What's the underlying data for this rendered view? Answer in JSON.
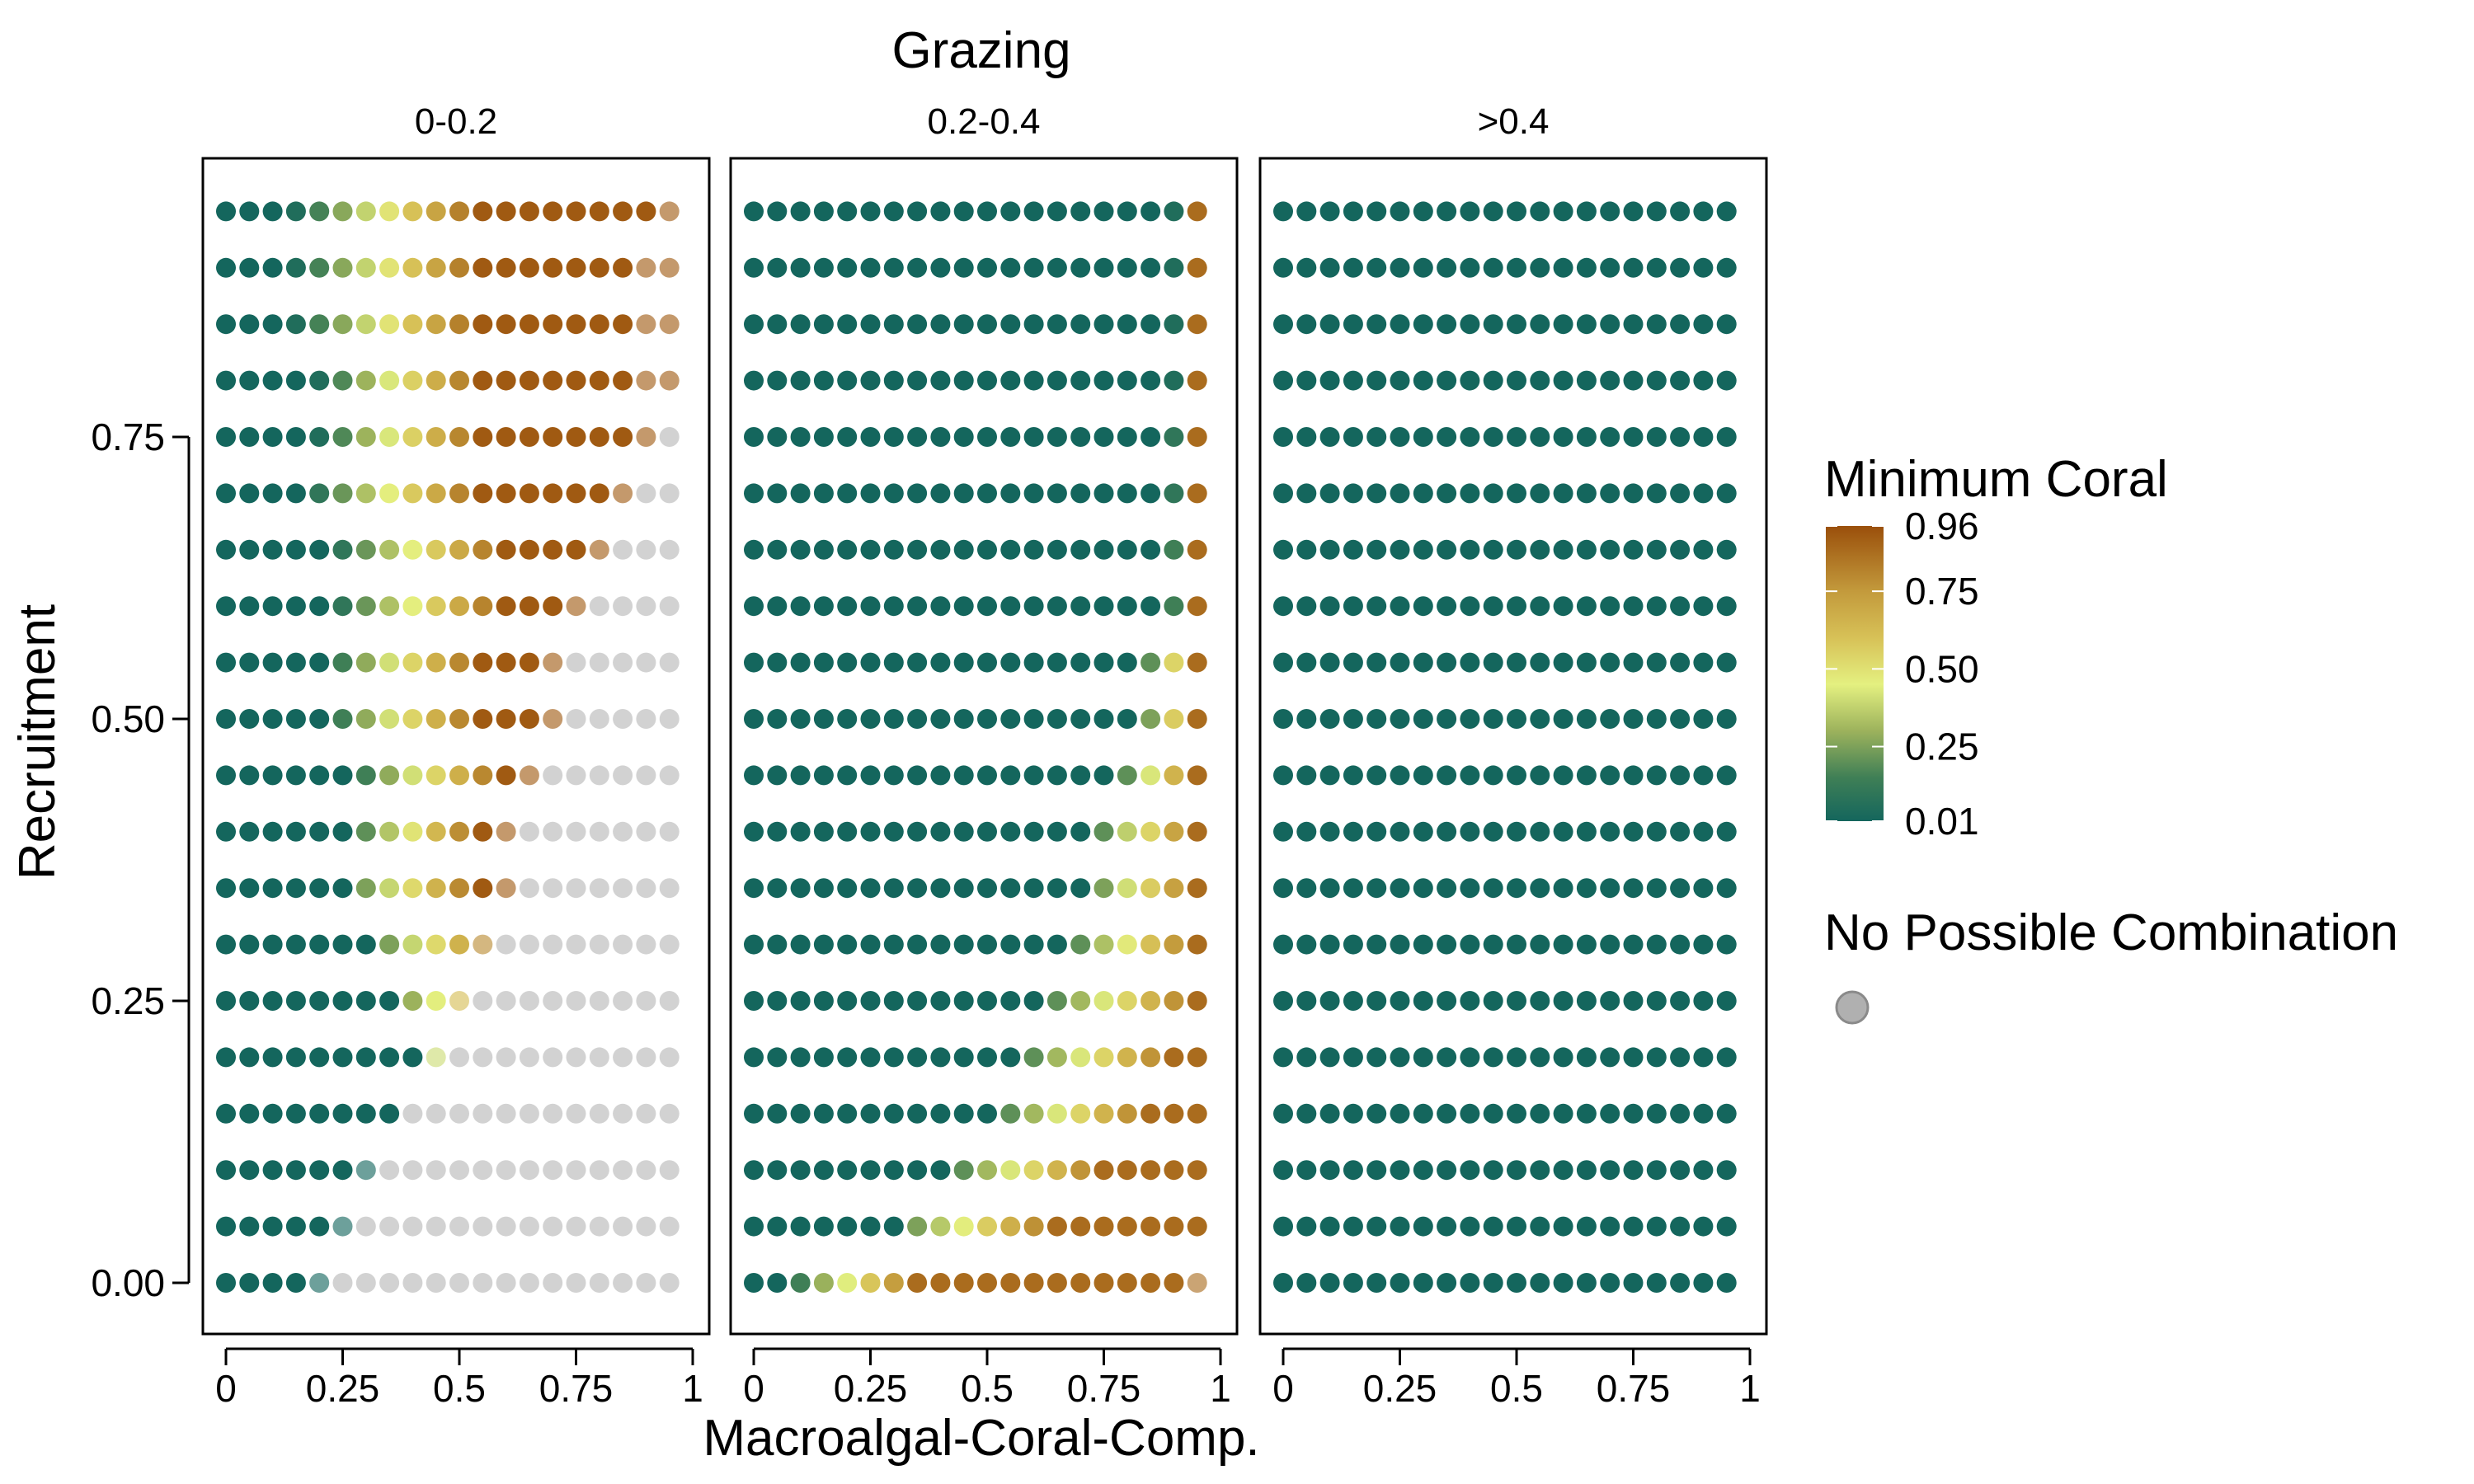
{
  "chart_data": {
    "type": "scatter",
    "title": "Grazing",
    "xlabel": "Macroalgal-Coral-Comp.",
    "ylabel": "Recruitment",
    "xlim": [
      0,
      1
    ],
    "ylim": [
      0,
      0.95
    ],
    "x_ticks": [
      "0",
      "0.25",
      "0.5",
      "0.75",
      "1"
    ],
    "x_tick_values": [
      0,
      0.25,
      0.5,
      0.75,
      1
    ],
    "y_ticks": [
      "0.00",
      "0.25",
      "0.50",
      "0.75"
    ],
    "y_tick_values": [
      0,
      0.25,
      0.5,
      0.75
    ],
    "x_values": [
      0,
      0.05,
      0.1,
      0.15,
      0.2,
      0.25,
      0.3,
      0.35,
      0.4,
      0.45,
      0.5,
      0.55,
      0.6,
      0.65,
      0.7,
      0.75,
      0.8,
      0.85,
      0.9,
      0.95
    ],
    "y_values": [
      0,
      0.05,
      0.1,
      0.15,
      0.2,
      0.25,
      0.3,
      0.35,
      0.4,
      0.45,
      0.5,
      0.55,
      0.6,
      0.65,
      0.7,
      0.75,
      0.8,
      0.85,
      0.9,
      0.95
    ],
    "panels": [
      {
        "label": "0-0.2",
        "start_x": [
          0.95,
          0.65,
          0.5,
          0.5,
          0.45,
          0.4,
          0.35,
          0.3,
          0.3,
          0.3,
          0.25,
          0.25,
          0.25,
          0.25,
          0.2,
          0.2,
          0.2,
          0.15,
          0.15,
          0.15
        ],
        "first_value": [
          0.8,
          0.5,
          0.1,
          0.5,
          0.4,
          0.3,
          0.25,
          0.25,
          0.2,
          0.15,
          0.15,
          0.15,
          0.1,
          0.1,
          0.1,
          0.05,
          0.05,
          0.05,
          0.05,
          0.05
        ],
        "ramp_width": [
          0.05,
          0.1,
          0.15,
          0.2,
          0.2,
          0.2,
          0.25,
          0.25,
          0.25,
          0.3,
          0.3,
          0.3,
          0.35,
          0.35,
          0.35,
          0.35,
          0.35,
          0.4,
          0.4,
          0.4
        ],
        "peak_value": 0.93,
        "fade_dots": [
          1,
          1,
          1,
          0,
          1,
          1,
          1,
          1,
          1,
          1,
          1,
          1,
          1,
          1,
          1,
          1,
          2,
          2,
          2,
          1
        ],
        "na_start_x": [
          0.25,
          0.3,
          0.35,
          0.4,
          0.5,
          0.55,
          0.6,
          0.65,
          0.65,
          0.7,
          0.75,
          0.75,
          0.8,
          0.85,
          0.9,
          0.95,
          1,
          1,
          1,
          1
        ]
      },
      {
        "label": "0.2-0.4",
        "start_x": [
          0.1,
          0.35,
          0.45,
          0.55,
          0.6,
          0.65,
          0.7,
          0.75,
          0.75,
          0.8,
          0.85,
          0.85,
          0.9,
          0.9,
          0.9,
          0.9,
          0.9,
          0.9,
          0.9,
          0.9
        ],
        "first_value": [
          0.15,
          0.25,
          0.2,
          0.2,
          0.2,
          0.2,
          0.2,
          0.25,
          0.2,
          0.2,
          0.25,
          0.2,
          0.15,
          0.15,
          0.1,
          0.1,
          0.05,
          0.05,
          0.05,
          0.05
        ],
        "ramp_width": [
          0.25,
          0.3,
          0.3,
          0.3,
          0.3,
          0.3,
          0.25,
          0.2,
          0.2,
          0.15,
          0.1,
          0.1,
          0.05,
          0.05,
          0.05,
          0.05,
          0.05,
          0.05,
          0.05,
          0.05
        ],
        "peak_value": 0.88,
        "fade_dots": [
          1,
          0,
          0,
          0,
          0,
          0,
          0,
          0,
          0,
          0,
          0,
          0,
          0,
          0,
          0,
          0,
          0,
          0,
          0,
          0
        ],
        "na_start_x": [
          1,
          1,
          1,
          1,
          1,
          1,
          1,
          1,
          1,
          1,
          1,
          1,
          1,
          1,
          1,
          1,
          1,
          1,
          1,
          1
        ]
      },
      {
        "label": ">0.4",
        "start_x": [
          1,
          1,
          1,
          1,
          1,
          1,
          1,
          1,
          1,
          1,
          1,
          1,
          1,
          1,
          1,
          1,
          1,
          1,
          1,
          1
        ],
        "first_value": [
          0.01,
          0.01,
          0.01,
          0.01,
          0.01,
          0.01,
          0.01,
          0.01,
          0.01,
          0.01,
          0.01,
          0.01,
          0.01,
          0.01,
          0.01,
          0.01,
          0.01,
          0.01,
          0.01,
          0.01
        ],
        "ramp_width": [
          0.05,
          0.05,
          0.05,
          0.05,
          0.05,
          0.05,
          0.05,
          0.05,
          0.05,
          0.05,
          0.05,
          0.05,
          0.05,
          0.05,
          0.05,
          0.05,
          0.05,
          0.05,
          0.05,
          0.05
        ],
        "peak_value": 0.01,
        "fade_dots": [
          0,
          0,
          0,
          0,
          0,
          0,
          0,
          0,
          0,
          0,
          0,
          0,
          0,
          0,
          0,
          0,
          0,
          0,
          0,
          0
        ],
        "na_start_x": [
          1,
          1,
          1,
          1,
          1,
          1,
          1,
          1,
          1,
          1,
          1,
          1,
          1,
          1,
          1,
          1,
          1,
          1,
          1,
          1
        ]
      }
    ],
    "base_value": 0.01,
    "color_scale": {
      "title": "Minimum Coral",
      "min": 0.01,
      "max": 0.96,
      "ticks": [
        "0.96",
        "0.75",
        "0.50",
        "0.25",
        "0.01"
      ],
      "tick_values": [
        0.96,
        0.75,
        0.5,
        0.25,
        0.01
      ],
      "stops": [
        {
          "value": 0.01,
          "color": "#14665d"
        },
        {
          "value": 0.15,
          "color": "#3f7f56"
        },
        {
          "value": 0.3,
          "color": "#9cb25c"
        },
        {
          "value": 0.45,
          "color": "#e4f080"
        },
        {
          "value": 0.6,
          "color": "#d7c157"
        },
        {
          "value": 0.75,
          "color": "#c39a3c"
        },
        {
          "value": 0.96,
          "color": "#9a4f0b"
        }
      ]
    },
    "na_legend": {
      "title": "No Possible Combination",
      "color": "#b0b0b0",
      "dot_color": "#d2d2d2"
    },
    "grid": false,
    "legend_position": "right"
  }
}
